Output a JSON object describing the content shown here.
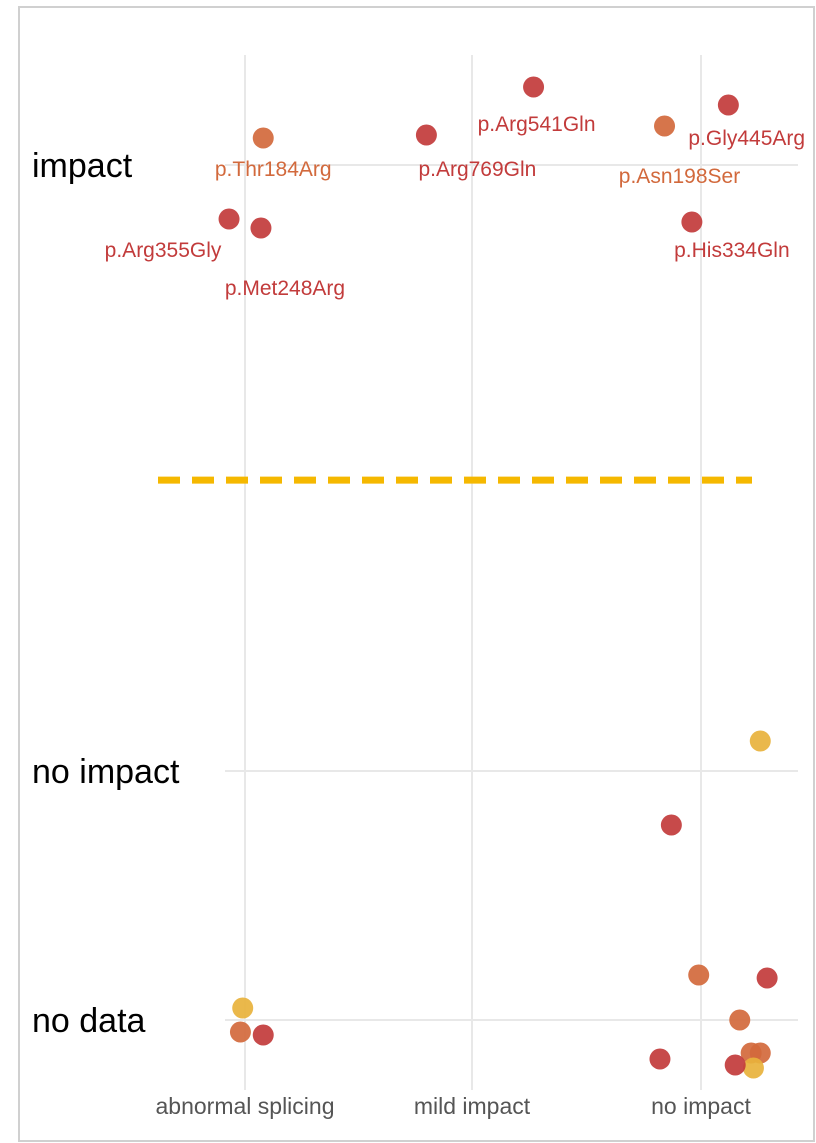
{
  "chart_data": {
    "type": "scatter",
    "title": "",
    "xlabel": "",
    "ylabel": "",
    "x_categories": [
      "abnormal splicing",
      "mild impact",
      "no impact"
    ],
    "y_categories": [
      "impact",
      "no impact",
      "no data"
    ],
    "threshold_line": {
      "style": "dashed",
      "color": "#F5B800"
    },
    "colors": {
      "red": "#C23B3B",
      "orange": "#D2693C",
      "yellow": "#E8B23C"
    },
    "points": [
      {
        "x": "abnormal splicing",
        "y": "impact",
        "jx": 0.08,
        "jy": 0.09,
        "color": "orange",
        "label": "p.Thr184Arg"
      },
      {
        "x": "abnormal splicing",
        "y": "impact",
        "jx": -0.07,
        "jy": -0.18,
        "color": "red",
        "label": "p.Arg355Gly"
      },
      {
        "x": "abnormal splicing",
        "y": "impact",
        "jx": 0.07,
        "jy": -0.21,
        "color": "red",
        "label": "p.Met248Arg"
      },
      {
        "x": "mild impact",
        "y": "impact",
        "jx": 0.27,
        "jy": 0.26,
        "color": "red",
        "label": "p.Arg541Gln"
      },
      {
        "x": "mild impact",
        "y": "impact",
        "jx": -0.2,
        "jy": 0.1,
        "color": "red",
        "label": "p.Arg769Gln"
      },
      {
        "x": "no impact",
        "y": "impact",
        "jx": -0.16,
        "jy": 0.13,
        "color": "orange",
        "label": "p.Asn198Ser"
      },
      {
        "x": "no impact",
        "y": "impact",
        "jx": 0.12,
        "jy": 0.2,
        "color": "red",
        "label": "p.Gly445Arg"
      },
      {
        "x": "no impact",
        "y": "impact",
        "jx": -0.04,
        "jy": -0.19,
        "color": "red",
        "label": "p.His334Gln"
      },
      {
        "x": "no impact",
        "y": "no impact",
        "jx": 0.26,
        "jy": 0.1,
        "color": "yellow",
        "label": ""
      },
      {
        "x": "no impact",
        "y": "no impact",
        "jx": -0.13,
        "jy": -0.18,
        "color": "red",
        "label": ""
      },
      {
        "x": "abnormal splicing",
        "y": "no data",
        "jx": -0.01,
        "jy": 0.04,
        "color": "yellow",
        "label": ""
      },
      {
        "x": "abnormal splicing",
        "y": "no data",
        "jx": -0.02,
        "jy": -0.04,
        "color": "orange",
        "label": ""
      },
      {
        "x": "abnormal splicing",
        "y": "no data",
        "jx": 0.08,
        "jy": -0.05,
        "color": "red",
        "label": ""
      },
      {
        "x": "no impact",
        "y": "no data",
        "jx": -0.01,
        "jy": 0.15,
        "color": "orange",
        "label": ""
      },
      {
        "x": "no impact",
        "y": "no data",
        "jx": 0.29,
        "jy": 0.14,
        "color": "red",
        "label": ""
      },
      {
        "x": "no impact",
        "y": "no data",
        "jx": 0.17,
        "jy": 0.0,
        "color": "orange",
        "label": ""
      },
      {
        "x": "no impact",
        "y": "no data",
        "jx": 0.22,
        "jy": -0.11,
        "color": "orange",
        "label": ""
      },
      {
        "x": "no impact",
        "y": "no data",
        "jx": 0.26,
        "jy": -0.11,
        "color": "orange",
        "label": ""
      },
      {
        "x": "no impact",
        "y": "no data",
        "jx": 0.23,
        "jy": -0.16,
        "color": "yellow",
        "label": ""
      },
      {
        "x": "no impact",
        "y": "no data",
        "jx": 0.15,
        "jy": -0.15,
        "color": "red",
        "label": ""
      },
      {
        "x": "no impact",
        "y": "no data",
        "jx": -0.18,
        "jy": -0.13,
        "color": "red",
        "label": ""
      }
    ]
  }
}
